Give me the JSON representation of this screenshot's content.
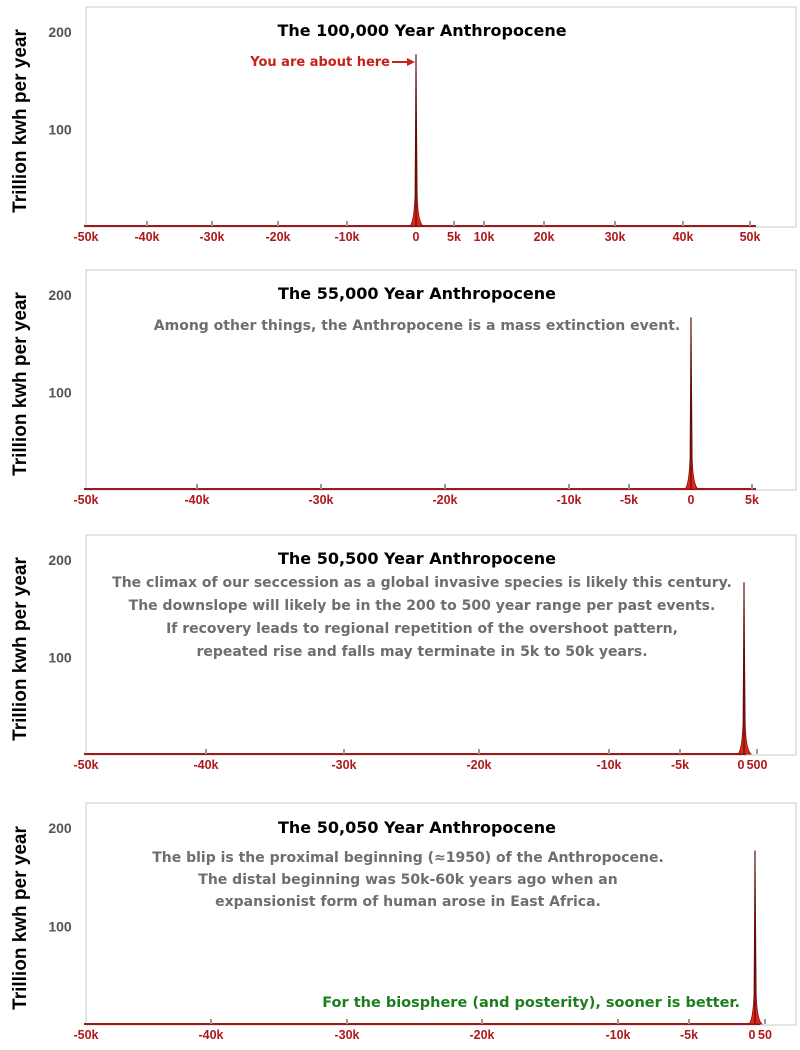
{
  "chart_data": [
    {
      "type": "area",
      "title": "The 100,000 Year Anthropocene",
      "ylabel": "Trillion kwh per year",
      "yticks": [
        100,
        200
      ],
      "xlim": [
        -50000,
        50000
      ],
      "ylim": [
        0,
        200
      ],
      "xticks": [
        -50000,
        -40000,
        -30000,
        -20000,
        -10000,
        0,
        5000,
        10000,
        20000,
        30000,
        40000,
        50000
      ],
      "xtick_labels": [
        "-50k",
        "-40k",
        "-30k",
        "-20k",
        "-10k",
        "0",
        "5k",
        "10k",
        "20k",
        "30k",
        "40k",
        "50k"
      ],
      "peak": {
        "x": 0,
        "y": 177
      },
      "annotations": [
        "You are about here"
      ],
      "notes": [],
      "green_note": ""
    },
    {
      "type": "area",
      "title": "The 55,000 Year Anthropocene",
      "ylabel": "Trillion kwh per year",
      "yticks": [
        100,
        200
      ],
      "xlim": [
        -50000,
        5000
      ],
      "ylim": [
        0,
        200
      ],
      "xticks": [
        -50000,
        -40000,
        -30000,
        -20000,
        -10000,
        -5000,
        0,
        5000
      ],
      "xtick_labels": [
        "-50k",
        "-40k",
        "-30k",
        "-20k",
        "-10k",
        "-5k",
        "0",
        "5k"
      ],
      "peak": {
        "x": 0,
        "y": 177
      },
      "annotations": [],
      "notes": [
        "Among other things, the Anthropocene is a mass extinction event."
      ],
      "green_note": ""
    },
    {
      "type": "area",
      "title": "The 50,500 Year Anthropocene",
      "ylabel": "Trillion kwh per year",
      "yticks": [
        100,
        200
      ],
      "xlim": [
        -50000,
        500
      ],
      "ylim": [
        0,
        200
      ],
      "xticks": [
        -50000,
        -40000,
        -30000,
        -20000,
        -10000,
        -5000,
        0,
        500
      ],
      "xtick_labels": [
        "-50k",
        "-40k",
        "-30k",
        "-20k",
        "-10k",
        "-5k",
        "0",
        "500"
      ],
      "peak": {
        "x": 0,
        "y": 177
      },
      "annotations": [],
      "notes": [
        "The climax of our seccession as a global invasive species is likely this century.",
        "The downslope will likely be in the 200 to 500 year range per past events.",
        "If recovery leads to regional repetition of the overshoot pattern,",
        "repeated rise and falls may terminate in 5k to 50k years."
      ],
      "green_note": ""
    },
    {
      "type": "area",
      "title": "The 50,050 Year Anthropocene",
      "ylabel": "Trillion kwh per year",
      "yticks": [
        100,
        200
      ],
      "xlim": [
        -50000,
        50
      ],
      "ylim": [
        0,
        200
      ],
      "xticks": [
        -50000,
        -40000,
        -30000,
        -20000,
        -10000,
        -5000,
        0,
        50
      ],
      "xtick_labels": [
        "-50k",
        "-40k",
        "-30k",
        "-20k",
        "-10k",
        "-5k",
        "0",
        "50"
      ],
      "peak": {
        "x": 0,
        "y": 177
      },
      "annotations": [],
      "notes": [
        "The blip is the proximal beginning (≈1950) of the Anthropocene.",
        "The distal beginning was 50k-60k years ago when an",
        "expansionist form of human arose in East Africa."
      ],
      "green_note": "For the biosphere (and posterity), sooner is better."
    }
  ]
}
